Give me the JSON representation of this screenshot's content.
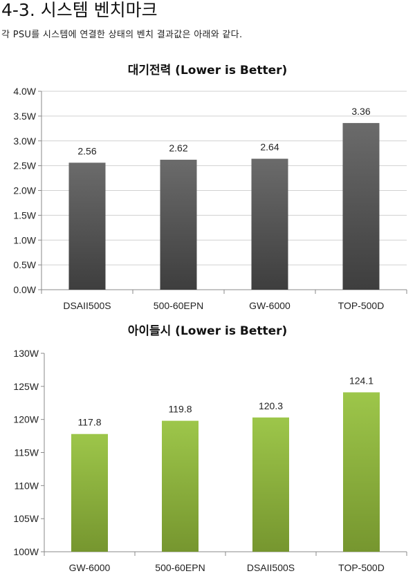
{
  "section": {
    "heading": "4-3. 시스템 벤치마크",
    "description": "각 PSU를 시스템에 연결한 상태의 벤치 결과값은 아래와 같다."
  },
  "chart_data": [
    {
      "type": "bar",
      "title": "대기전력 (Lower is Better)",
      "categories": [
        "DSAII500S",
        "500-60EPN",
        "GW-6000",
        "TOP-500D"
      ],
      "values": [
        2.56,
        2.62,
        2.64,
        3.36
      ],
      "value_labels": [
        "2.56",
        "2.62",
        "2.64",
        "3.36"
      ],
      "ylim": [
        0,
        4
      ],
      "yticks": [
        0,
        0.5,
        1,
        1.5,
        2,
        2.5,
        3,
        3.5,
        4
      ],
      "ytick_labels": [
        "0.0W",
        "0.5W",
        "1.0W",
        "1.5W",
        "2.0W",
        "2.5W",
        "3.0W",
        "3.5W",
        "4.0W"
      ],
      "grid": true,
      "legend": "none",
      "color_top": "#6b6b6b",
      "color_bottom": "#3e3e3e"
    },
    {
      "type": "bar",
      "title": "아이들시 (Lower is Better)",
      "categories": [
        "GW-6000",
        "500-60EPN",
        "DSAII500S",
        "TOP-500D"
      ],
      "values": [
        117.8,
        119.8,
        120.3,
        124.1
      ],
      "value_labels": [
        "117.8",
        "119.8",
        "120.3",
        "124.1"
      ],
      "ylim": [
        100,
        130
      ],
      "yticks": [
        100,
        105,
        110,
        115,
        120,
        125,
        130
      ],
      "ytick_labels": [
        "100W",
        "105W",
        "110W",
        "115W",
        "120W",
        "125W",
        "130W"
      ],
      "grid": false,
      "legend": "none",
      "color_top": "#9dc64a",
      "color_bottom": "#76962f"
    }
  ]
}
